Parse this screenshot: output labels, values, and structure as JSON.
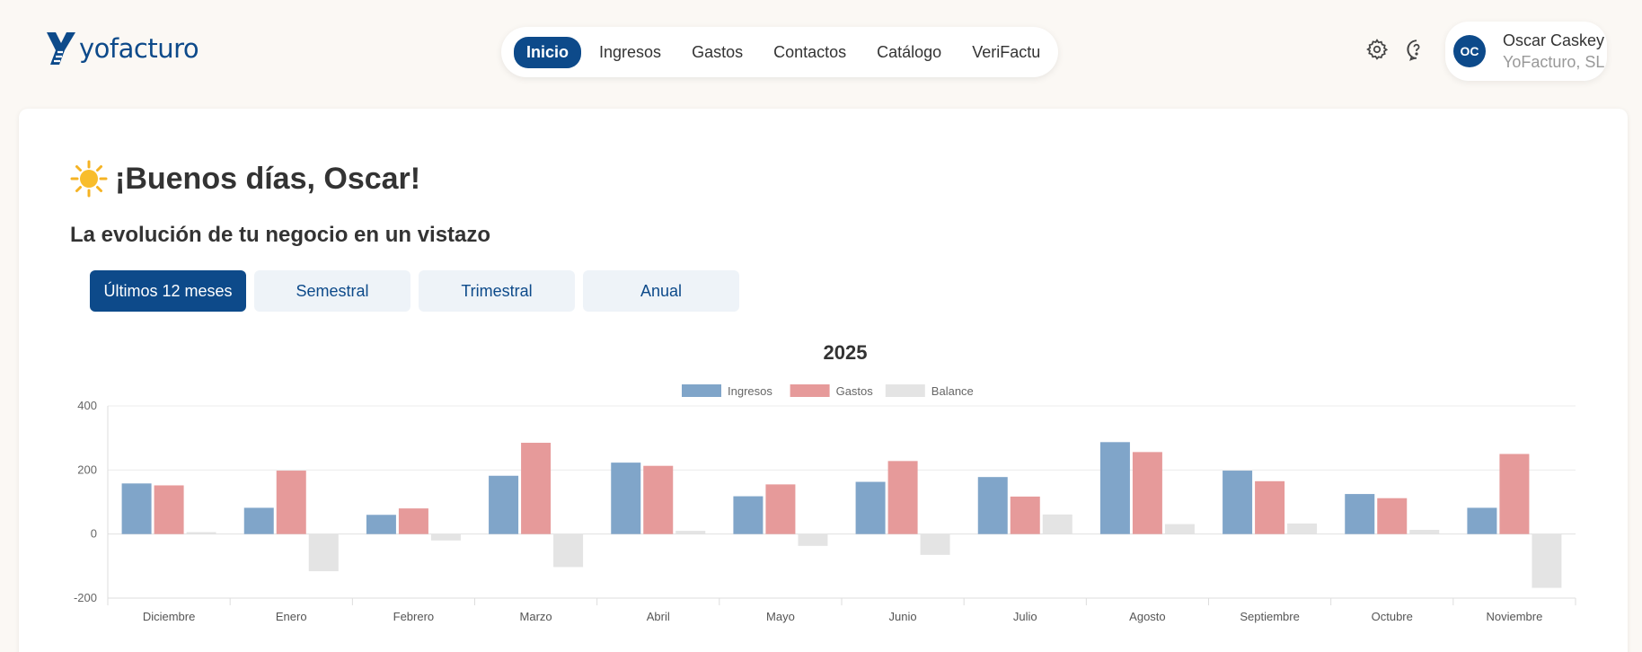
{
  "header": {
    "logo_text": "yofacturo",
    "nav": [
      {
        "label": "Inicio",
        "active": true
      },
      {
        "label": "Ingresos",
        "active": false
      },
      {
        "label": "Gastos",
        "active": false
      },
      {
        "label": "Contactos",
        "active": false
      },
      {
        "label": "Catálogo",
        "active": false
      },
      {
        "label": "VeriFactu",
        "active": false
      }
    ],
    "icons": [
      "gear-icon",
      "help-chat-icon"
    ],
    "user": {
      "initials": "OC",
      "name": "Oscar Caskey",
      "company": "YoFacturo, SL"
    }
  },
  "main": {
    "greeting": "¡Buenos días, Oscar!",
    "greeting_icon": "sun-icon",
    "subtitle": "La evolución de tu negocio en un vistazo",
    "tabs": [
      {
        "label": "Últimos 12 meses",
        "active": true
      },
      {
        "label": "Semestral",
        "active": false
      },
      {
        "label": "Trimestral",
        "active": false
      },
      {
        "label": "Anual",
        "active": false
      }
    ]
  },
  "colors": {
    "brand": "#0d4a8a",
    "ingresos": "#80a5c9",
    "gastos": "#e69a9a",
    "balance": "#e4e4e4"
  },
  "chart_data": {
    "type": "bar",
    "title": "2025",
    "categories": [
      "Diciembre",
      "Enero",
      "Febrero",
      "Marzo",
      "Abril",
      "Mayo",
      "Junio",
      "Julio",
      "Agosto",
      "Septiembre",
      "Octubre",
      "Noviembre"
    ],
    "series": [
      {
        "name": "Ingresos",
        "values": [
          158,
          82,
          60,
          182,
          223,
          118,
          163,
          178,
          287,
          198,
          125,
          82
        ]
      },
      {
        "name": "Gastos",
        "values": [
          152,
          198,
          80,
          285,
          213,
          155,
          228,
          117,
          256,
          165,
          112,
          250
        ]
      },
      {
        "name": "Balance",
        "values": [
          6,
          -116,
          -20,
          -103,
          10,
          -37,
          -65,
          61,
          31,
          33,
          13,
          -168
        ]
      }
    ],
    "yticks": [
      "400",
      "200",
      "0",
      "-200"
    ],
    "ylim": [
      -200,
      400
    ],
    "legend": "top-center",
    "grid": true
  }
}
